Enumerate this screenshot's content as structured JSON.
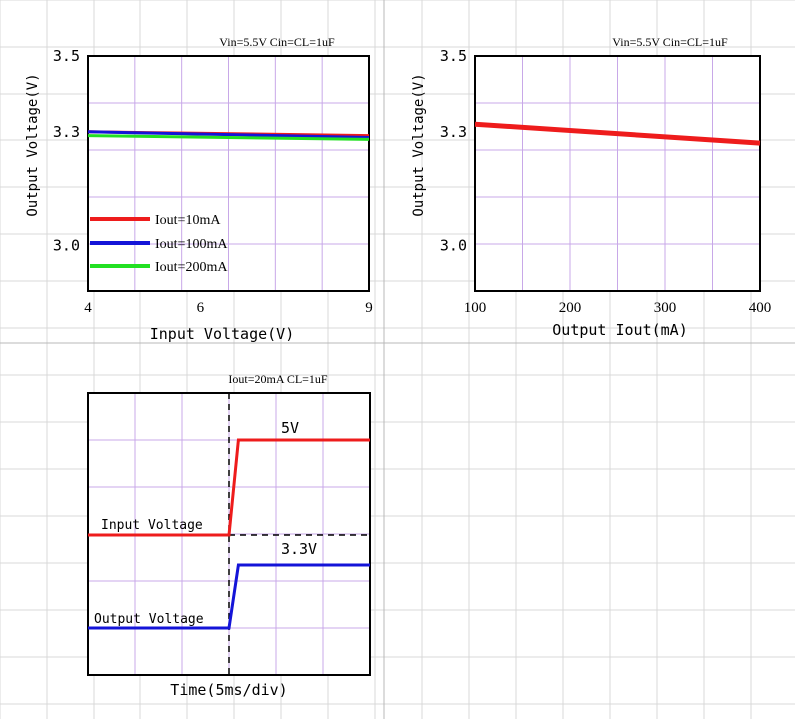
{
  "colors": {
    "red": "#ee1c1c",
    "blue": "#1414d8",
    "green": "#22e022",
    "grid": "#c8a8e8",
    "bg_grid": "#d9d9d9",
    "frame": "#000000"
  },
  "chart_data": [
    {
      "type": "line",
      "title": "Vin=5.5V Cin=CL=1uF",
      "xlabel": "Input Voltage(V)",
      "ylabel": "Output Voltage(V)",
      "xlim": [
        4,
        9
      ],
      "ylim": [
        2.88,
        3.5
      ],
      "x_ticks": [
        "4",
        "6",
        "9"
      ],
      "x_tick_values": [
        4,
        6,
        9
      ],
      "y_ticks": [
        "3.5",
        "3.3",
        "3.0"
      ],
      "y_tick_values": [
        3.5,
        3.3,
        3.0
      ],
      "grid": true,
      "legend_position": "bottom-left",
      "series": [
        {
          "name": "Iout=10mA",
          "color": "#ee1c1c",
          "x": [
            4,
            9
          ],
          "y": [
            3.3,
            3.29
          ]
        },
        {
          "name": "Iout=100mA",
          "color": "#1414d8",
          "x": [
            4,
            9
          ],
          "y": [
            3.3,
            3.285
          ]
        },
        {
          "name": "Iout=200mA",
          "color": "#22e022",
          "x": [
            4,
            9
          ],
          "y": [
            3.29,
            3.28
          ]
        }
      ]
    },
    {
      "type": "line",
      "title": "Vin=5.5V Cin=CL=1uF",
      "xlabel": "Output Iout(mA)",
      "ylabel": "Output Voltage(V)",
      "xlim": [
        100,
        400
      ],
      "ylim": [
        2.88,
        3.5
      ],
      "x_ticks": [
        "100",
        "200",
        "300",
        "400"
      ],
      "x_tick_values": [
        100,
        200,
        300,
        400
      ],
      "y_ticks": [
        "3.5",
        "3.3",
        "3.0"
      ],
      "y_tick_values": [
        3.5,
        3.3,
        3.0
      ],
      "grid": true,
      "series": [
        {
          "name": "",
          "color": "#ee1c1c",
          "x": [
            100,
            400
          ],
          "y": [
            3.32,
            3.27
          ]
        }
      ]
    },
    {
      "type": "line",
      "title": "Iout=20mA CL=1uF",
      "xlabel": "Time(5ms/div)",
      "ylabel": "",
      "grid": true,
      "annotations": [
        "5V",
        "3.3V",
        "Input Voltage",
        "Output Voltage"
      ],
      "series": [
        {
          "name": "Input Voltage",
          "color": "#ee1c1c",
          "x": [
            0,
            3,
            3.2,
            6
          ],
          "y": [
            0,
            0,
            5,
            5
          ],
          "level_label": "5V"
        },
        {
          "name": "Output Voltage",
          "color": "#1414d8",
          "x": [
            0,
            3,
            3.2,
            6
          ],
          "y": [
            0,
            0,
            3.3,
            3.3
          ],
          "level_label": "3.3V"
        }
      ]
    }
  ]
}
